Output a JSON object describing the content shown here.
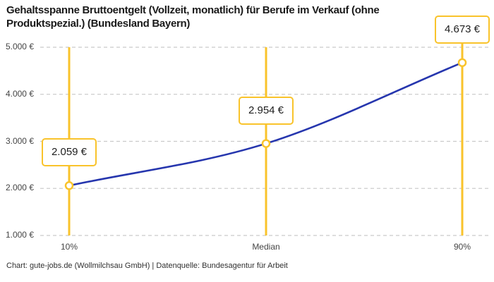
{
  "header": {
    "title": "Gehaltsspanne Bruttoentgelt (Vollzeit, monatlich) für Berufe im Verkauf (ohne Produktspezial.) (Bundesland Bayern)"
  },
  "footer": {
    "credit": "Chart: gute-jobs.de (Wollmilchsau GmbH) | Datenquelle: Bundesagentur für Arbeit"
  },
  "chart_data": {
    "type": "line",
    "title": "Gehaltsspanne Bruttoentgelt (Vollzeit, monatlich) für Berufe im Verkauf (ohne Produktspezial.) (Bundesland Bayern)",
    "categories": [
      "10%",
      "Median",
      "90%"
    ],
    "values": [
      2059,
      2954,
      4673
    ],
    "value_labels": [
      "2.059 €",
      "2.954 €",
      "4.673 €"
    ],
    "ylim": [
      1000,
      5000
    ],
    "y_ticks": [
      {
        "value": 5000,
        "label": "5.000 €"
      },
      {
        "value": 4000,
        "label": "4.000 €"
      },
      {
        "value": 3000,
        "label": "3.000 €"
      },
      {
        "value": 2000,
        "label": "2.000 €"
      },
      {
        "value": 1000,
        "label": "1.000 €"
      }
    ],
    "grid": "horizontal-dashed",
    "legend": "none",
    "colors": {
      "line": "#2636ae",
      "highlight": "#f9c32b",
      "grid": "#cbcbcb",
      "marker_fill": "#ffffff",
      "text": "#1d1d1d",
      "axis_text": "#454545"
    }
  }
}
